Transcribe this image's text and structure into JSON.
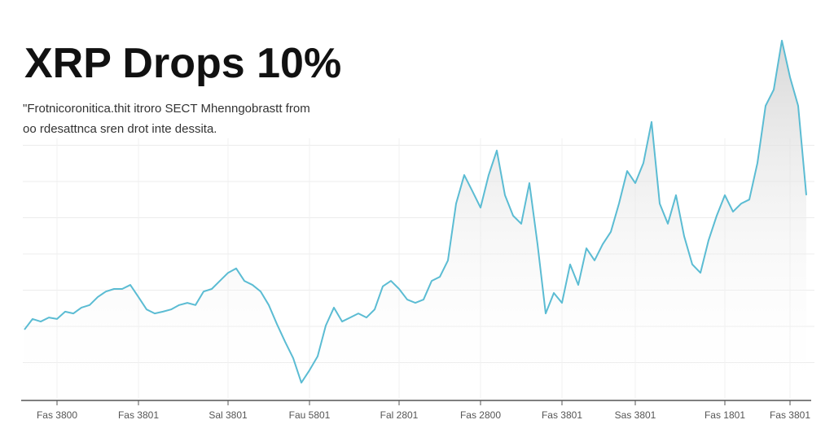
{
  "chart_data": {
    "type": "line",
    "title": "XRP Drops 10%",
    "subtitle": [
      "\"Frotnicoronitica.thit itroro SECT Mhenngobrastt from",
      "oo rdesattnca sren drot inte dessita."
    ],
    "color": "#5bbcd3",
    "ylim": [
      0,
      100
    ],
    "grid": true,
    "categories": [
      null,
      null,
      null,
      null,
      "Fas 3800",
      null,
      null,
      null,
      null,
      null,
      null,
      null,
      null,
      null,
      "Fas 3801",
      null,
      null,
      null,
      null,
      null,
      null,
      null,
      null,
      null,
      null,
      "Sal 3801",
      null,
      null,
      null,
      null,
      null,
      null,
      null,
      null,
      null,
      "Fau 5801",
      null,
      null,
      null,
      null,
      null,
      null,
      null,
      null,
      null,
      null,
      "Fal 2801",
      null,
      null,
      null,
      null,
      null,
      null,
      null,
      null,
      null,
      "Fas 2800",
      null,
      null,
      null,
      null,
      null,
      null,
      null,
      null,
      null,
      "Fas 3801",
      null,
      null,
      null,
      null,
      null,
      null,
      null,
      null,
      "Sas 3801",
      null,
      null,
      null,
      null,
      null,
      null,
      null,
      null,
      null,
      null,
      "Fas 1801",
      null,
      null,
      null,
      null,
      null,
      null,
      null,
      "Fas 3801",
      null,
      null
    ],
    "values": [
      18.9,
      21.8,
      21.1,
      22.2,
      21.8,
      23.8,
      23.3,
      24.9,
      25.6,
      27.8,
      29.3,
      30,
      30,
      31.1,
      27.8,
      24.4,
      23.3,
      23.8,
      24.4,
      25.6,
      26.2,
      25.6,
      29.3,
      30,
      32.2,
      34.4,
      35.6,
      32.2,
      31.1,
      29.3,
      25.6,
      20.4,
      15.6,
      11.1,
      4.4,
      7.8,
      11.6,
      20,
      24.9,
      21.1,
      22.2,
      23.3,
      22.2,
      24.4,
      30.7,
      32.2,
      30,
      27.1,
      26.2,
      27.1,
      32.2,
      33.3,
      37.8,
      53.3,
      61.1,
      56.7,
      52.2,
      61.1,
      67.8,
      55.6,
      50,
      47.8,
      58.9,
      42.2,
      23.3,
      28.9,
      26.2,
      36.7,
      31.1,
      41.1,
      37.8,
      42.2,
      45.6,
      53.3,
      62.2,
      58.9,
      64.4,
      75.6,
      53.3,
      47.8,
      55.6,
      44.4,
      36.7,
      34.4,
      43.3,
      50,
      55.6,
      51.1,
      53.3,
      54.4,
      64.4,
      80,
      84.4,
      97.8,
      87.8,
      80,
      55.6
    ]
  }
}
